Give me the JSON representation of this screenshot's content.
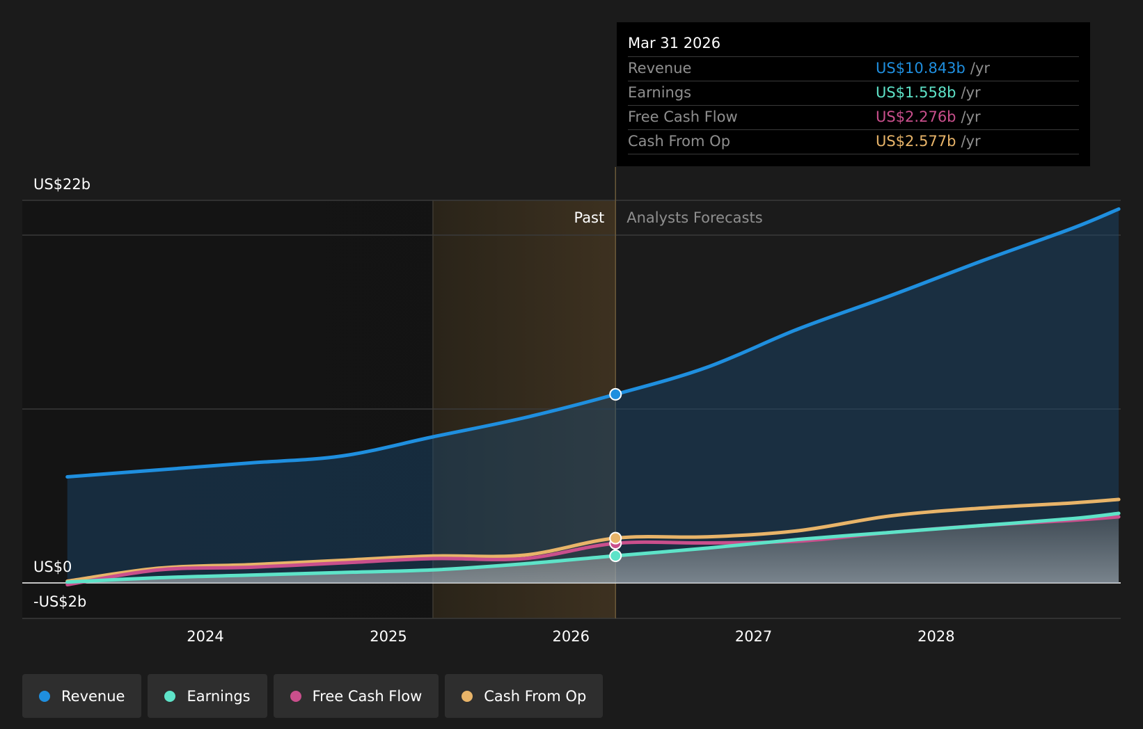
{
  "chart_data": {
    "type": "line",
    "x_axis": {
      "type": "date",
      "ticks": [
        "2024",
        "2025",
        "2026",
        "2027",
        "2028"
      ]
    },
    "y_axis": {
      "ticks": [
        {
          "label": "US$22b",
          "value": 22
        },
        {
          "label": "US$0",
          "value": 0
        },
        {
          "label": "-US$2b",
          "value": -2
        }
      ],
      "unit": "US$ billions"
    },
    "split_date": "2026-03-31",
    "regions": {
      "past_label": "Past",
      "forecast_label": "Analysts Forecasts"
    },
    "series": [
      {
        "name": "Revenue",
        "color": "#1f8fdf",
        "points": [
          [
            "2023-03-31",
            6.1
          ],
          [
            "2023-09-30",
            6.5
          ],
          [
            "2024-03-31",
            6.9
          ],
          [
            "2024-09-30",
            7.3
          ],
          [
            "2025-03-31",
            8.4
          ],
          [
            "2025-09-30",
            9.5
          ],
          [
            "2026-03-31",
            10.843
          ],
          [
            "2026-09-30",
            12.4
          ],
          [
            "2027-03-31",
            14.6
          ],
          [
            "2027-09-30",
            16.5
          ],
          [
            "2028-03-31",
            18.5
          ],
          [
            "2028-09-30",
            20.4
          ],
          [
            "2028-12-31",
            21.5
          ]
        ]
      },
      {
        "name": "Earnings",
        "color": "#5ee3c8",
        "points": [
          [
            "2023-03-31",
            0.05
          ],
          [
            "2023-09-30",
            0.3
          ],
          [
            "2024-03-31",
            0.45
          ],
          [
            "2024-09-30",
            0.6
          ],
          [
            "2025-03-31",
            0.75
          ],
          [
            "2025-09-30",
            1.1
          ],
          [
            "2026-03-31",
            1.558
          ],
          [
            "2026-09-30",
            2.0
          ],
          [
            "2027-03-31",
            2.5
          ],
          [
            "2027-09-30",
            2.9
          ],
          [
            "2028-03-31",
            3.3
          ],
          [
            "2028-09-30",
            3.7
          ],
          [
            "2028-12-31",
            4.0
          ]
        ]
      },
      {
        "name": "Free Cash Flow",
        "color": "#c94f8c",
        "points": [
          [
            "2023-03-31",
            -0.1
          ],
          [
            "2023-09-30",
            0.75
          ],
          [
            "2024-03-31",
            0.9
          ],
          [
            "2024-09-30",
            1.15
          ],
          [
            "2025-03-31",
            1.4
          ],
          [
            "2025-09-30",
            1.4
          ],
          [
            "2026-03-31",
            2.276
          ],
          [
            "2026-09-30",
            2.3
          ],
          [
            "2027-03-31",
            2.4
          ],
          [
            "2027-09-30",
            2.9
          ],
          [
            "2028-03-31",
            3.3
          ],
          [
            "2028-09-30",
            3.6
          ],
          [
            "2028-12-31",
            3.8
          ]
        ]
      },
      {
        "name": "Cash From Op",
        "color": "#e8b469",
        "points": [
          [
            "2023-03-31",
            0.1
          ],
          [
            "2023-09-30",
            0.85
          ],
          [
            "2024-03-31",
            1.05
          ],
          [
            "2024-09-30",
            1.3
          ],
          [
            "2025-03-31",
            1.55
          ],
          [
            "2025-09-30",
            1.6
          ],
          [
            "2026-03-31",
            2.577
          ],
          [
            "2026-09-30",
            2.65
          ],
          [
            "2027-03-31",
            3.0
          ],
          [
            "2027-09-30",
            3.85
          ],
          [
            "2028-03-31",
            4.3
          ],
          [
            "2028-09-30",
            4.6
          ],
          [
            "2028-12-31",
            4.8
          ]
        ]
      }
    ]
  },
  "tooltip": {
    "date": "Mar 31 2026",
    "unit": "/yr",
    "rows": [
      {
        "label": "Revenue",
        "value": "US$10.843b",
        "color": "#1f8fdf"
      },
      {
        "label": "Earnings",
        "value": "US$1.558b",
        "color": "#5ee3c8"
      },
      {
        "label": "Free Cash Flow",
        "value": "US$2.276b",
        "color": "#c94f8c"
      },
      {
        "label": "Cash From Op",
        "value": "US$2.577b",
        "color": "#e8b469"
      }
    ]
  },
  "legend": [
    {
      "label": "Revenue",
      "color": "#1f8fdf"
    },
    {
      "label": "Earnings",
      "color": "#5ee3c8"
    },
    {
      "label": "Free Cash Flow",
      "color": "#c94f8c"
    },
    {
      "label": "Cash From Op",
      "color": "#e8b469"
    }
  ]
}
